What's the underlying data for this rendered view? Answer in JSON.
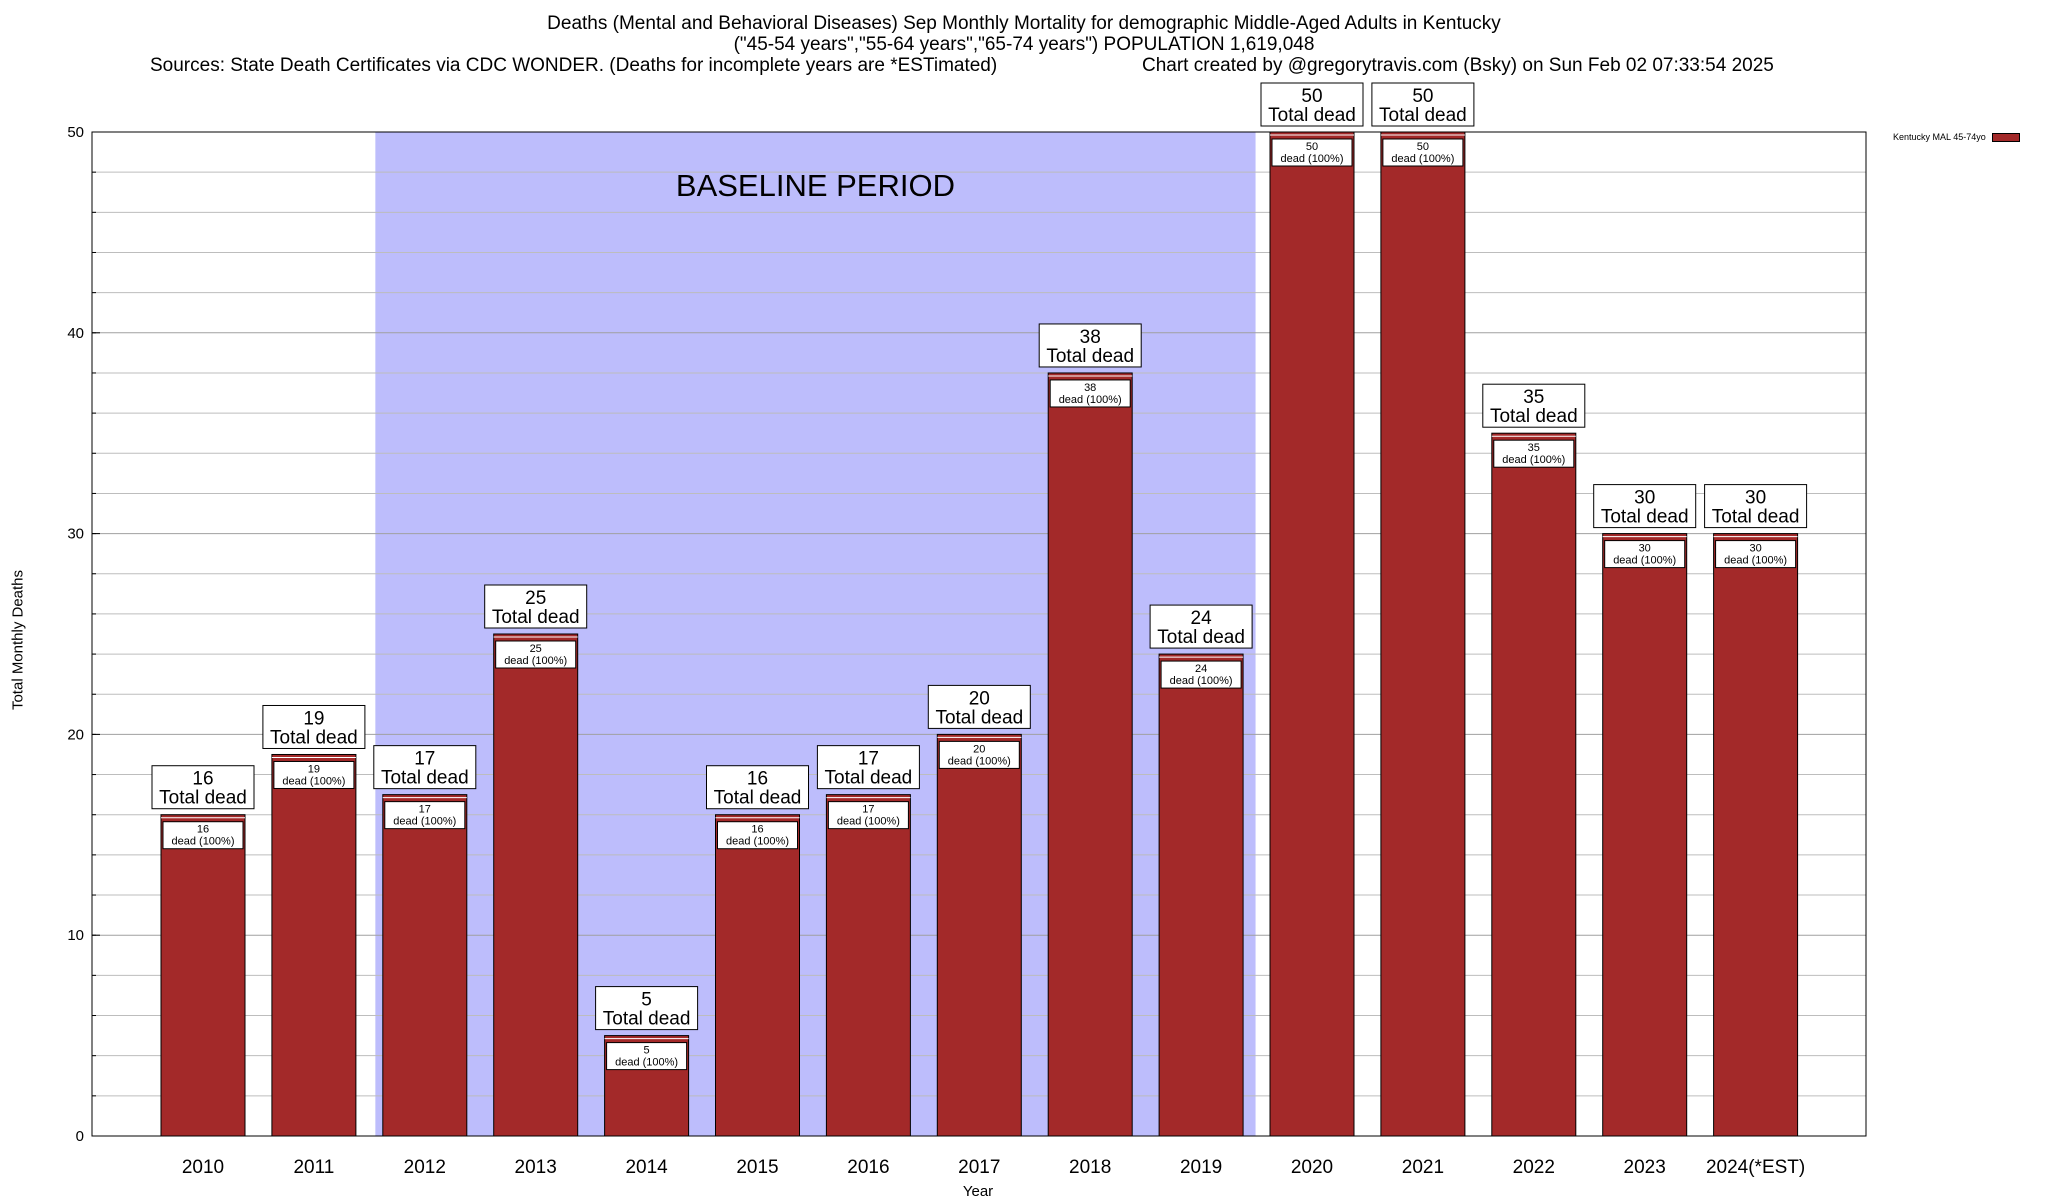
{
  "title": {
    "line1": "Deaths (Mental and Behavioral Diseases) Sep Monthly Mortality for demographic Middle-Aged Adults in Kentucky",
    "line2": "(\"45-54 years\",\"55-64 years\",\"65-74 years\") POPULATION 1,619,048",
    "sources": "Sources: State Death Certificates via CDC WONDER. (Deaths for incomplete years are *ESTimated)",
    "credit": "Chart created by @gregorytravis.com (Bsky) on Sun Feb 02 07:33:54 2025"
  },
  "chart_data": {
    "type": "bar",
    "categories": [
      "2010",
      "2011",
      "2012",
      "2013",
      "2014",
      "2015",
      "2016",
      "2017",
      "2018",
      "2019",
      "2020",
      "2021",
      "2022",
      "2023",
      "2024(*EST)"
    ],
    "series": [
      {
        "name": "Kentucky MAL 45-74yo",
        "values": [
          16,
          19,
          17,
          25,
          5,
          16,
          17,
          20,
          38,
          24,
          50,
          50,
          35,
          30,
          30
        ],
        "color": "#a32929"
      }
    ],
    "xlabel": "Year",
    "ylabel": "Total Monthly Deaths",
    "ylim": [
      0,
      50
    ],
    "yticks": [
      0,
      10,
      20,
      30,
      40,
      50
    ],
    "grid": true,
    "legend_position": "top-right",
    "bar_label_top_suffix": "Total dead",
    "bar_label_inner_suffix": "dead (100%)",
    "baseline": {
      "label": "BASELINE PERIOD",
      "from": "2012",
      "to": "2019",
      "color": "#bdbdfc"
    }
  }
}
